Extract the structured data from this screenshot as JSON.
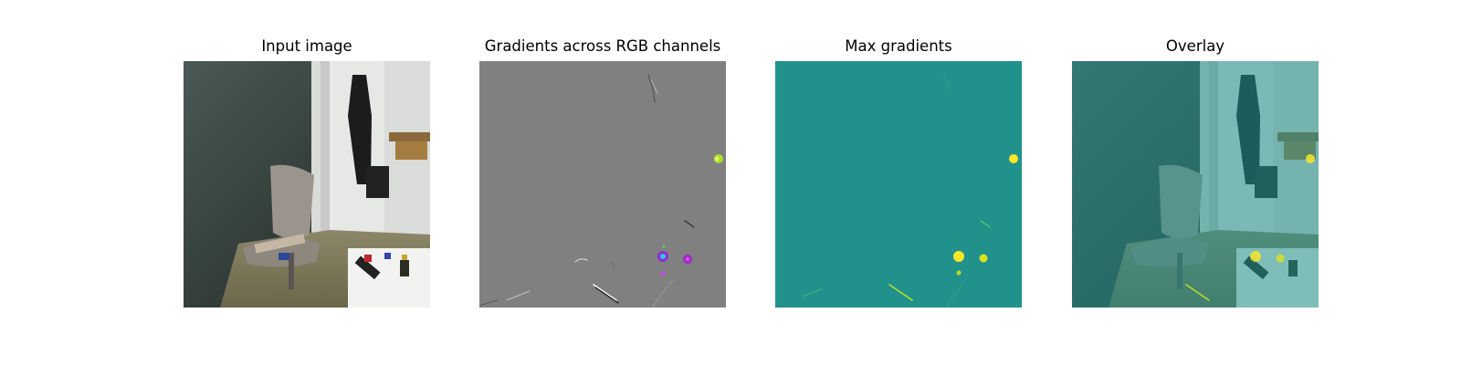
{
  "panels": [
    {
      "title": "Input image"
    },
    {
      "title": "Gradients across RGB channels"
    },
    {
      "title": "Max gradients"
    },
    {
      "title": "Overlay"
    }
  ],
  "colors": {
    "max_gradient_background": "#21918c",
    "max_gradient_peak": "#fde725",
    "rgb_gradient_background": "#808080",
    "overlay_tint": "#21918c"
  }
}
